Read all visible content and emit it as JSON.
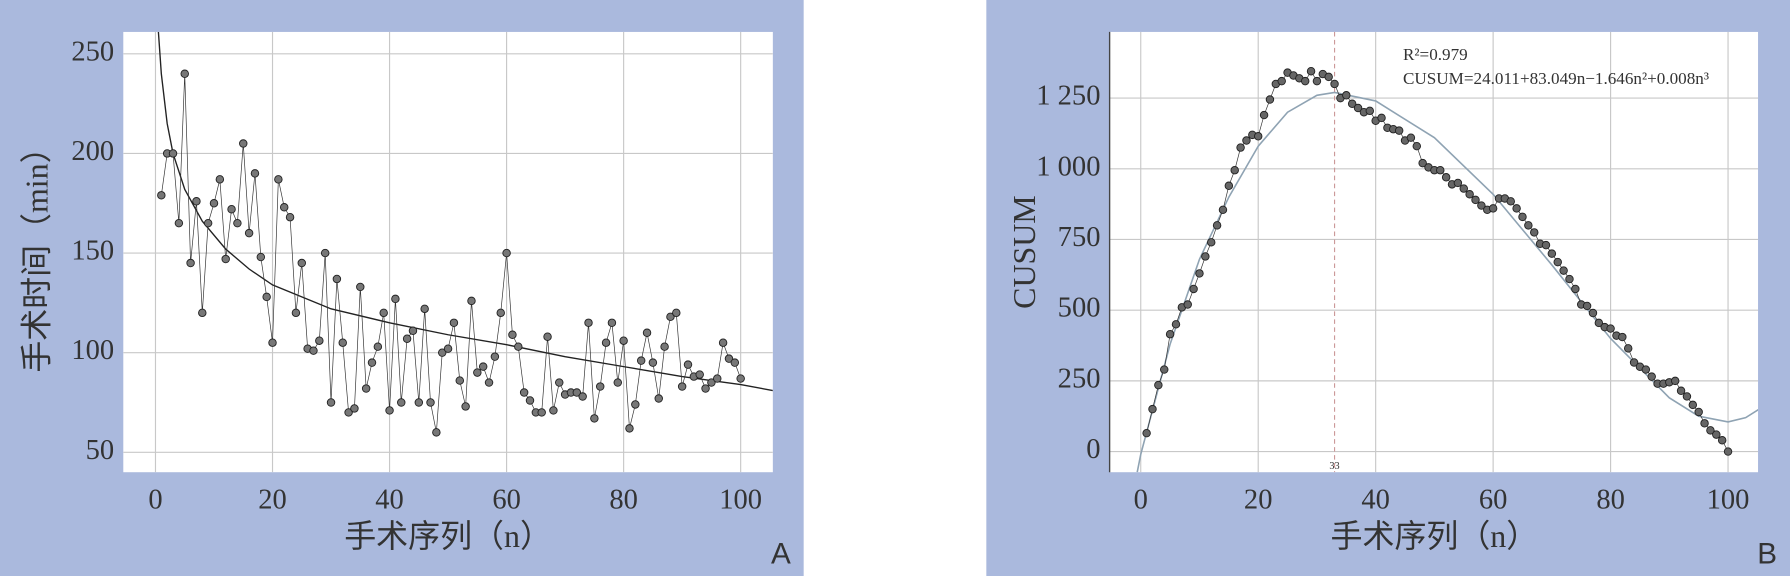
{
  "chart_data": [
    {
      "type": "line",
      "panel": "A",
      "xlabel": "手术序列（n）",
      "ylabel": "手术时间（min）",
      "x": [
        1,
        2,
        3,
        4,
        5,
        6,
        7,
        8,
        9,
        10,
        11,
        12,
        13,
        14,
        15,
        16,
        17,
        18,
        19,
        20,
        21,
        22,
        23,
        24,
        25,
        26,
        27,
        28,
        29,
        30,
        31,
        32,
        33,
        34,
        35,
        36,
        37,
        38,
        39,
        40,
        41,
        42,
        43,
        44,
        45,
        46,
        47,
        48,
        49,
        50,
        51,
        52,
        53,
        54,
        55,
        56,
        57,
        58,
        59,
        60,
        61,
        62,
        63,
        64,
        65,
        66,
        67,
        68,
        69,
        70,
        71,
        72,
        73,
        74,
        75,
        76,
        77,
        78,
        79,
        80,
        81,
        82,
        83,
        84,
        85,
        86,
        87,
        88,
        89,
        90,
        91,
        92,
        93,
        94,
        95,
        96,
        97,
        98,
        99,
        100
      ],
      "series": [
        {
          "color": "#777777",
          "values": [
            179,
            200,
            200,
            165,
            240,
            145,
            176,
            120,
            165,
            175,
            187,
            147,
            172,
            165,
            205,
            160,
            190,
            148,
            128,
            105,
            187,
            173,
            168,
            120,
            145,
            102,
            101,
            106,
            150,
            75,
            137,
            105,
            70,
            72,
            133,
            82,
            95,
            103,
            120,
            71,
            127,
            75,
            107,
            111,
            75,
            122,
            75,
            60,
            100,
            102,
            115,
            86,
            73,
            126,
            90,
            93,
            85,
            98,
            120,
            150,
            109,
            103,
            80,
            76,
            70,
            70,
            108,
            71,
            85,
            79,
            80,
            80,
            78,
            115,
            67,
            83,
            105,
            115,
            85,
            106,
            62,
            74,
            96,
            110,
            95,
            77,
            103,
            118,
            120,
            83,
            94,
            88,
            89,
            82,
            85,
            87,
            105,
            97,
            95,
            87
          ]
        }
      ],
      "curve": {
        "color": "#222222",
        "x": [
          0.5,
          1,
          2,
          3,
          5,
          8,
          12,
          16,
          20,
          30,
          40,
          50,
          60,
          70,
          80,
          90,
          100,
          105.5
        ],
        "values": [
          261,
          240,
          215,
          200,
          182,
          166,
          152,
          142,
          134,
          122,
          115,
          109,
          104,
          98,
          93,
          88,
          84,
          81
        ]
      },
      "xlim": [
        -5.5,
        105.5
      ],
      "ylim": [
        40,
        261
      ],
      "xticks": [
        0,
        20,
        40,
        60,
        80,
        100
      ],
      "yticks": [
        50,
        100,
        150,
        200,
        250
      ],
      "grid": true
    },
    {
      "type": "line",
      "panel": "B",
      "xlabel": "手术序列（n）",
      "ylabel": "CUSUM",
      "annotations": [
        "R²=0.979",
        "CUSUM=24.011+83.049n−1.646n²+0.008n³"
      ],
      "vline": 33,
      "x": [
        1,
        2,
        3,
        4,
        5,
        6,
        7,
        8,
        9,
        10,
        11,
        12,
        13,
        14,
        15,
        16,
        17,
        18,
        19,
        20,
        21,
        22,
        23,
        24,
        25,
        26,
        27,
        28,
        29,
        30,
        31,
        32,
        33,
        34,
        35,
        36,
        37,
        38,
        39,
        40,
        41,
        42,
        43,
        44,
        45,
        46,
        47,
        48,
        49,
        50,
        51,
        52,
        53,
        54,
        55,
        56,
        57,
        58,
        59,
        60,
        61,
        62,
        63,
        64,
        65,
        66,
        67,
        68,
        69,
        70,
        71,
        72,
        73,
        74,
        75,
        76,
        77,
        78,
        79,
        80,
        81,
        82,
        83,
        84,
        85,
        86,
        87,
        88,
        89,
        90,
        91,
        92,
        93,
        94,
        95,
        96,
        97,
        98,
        99,
        100
      ],
      "series": [
        {
          "color": "#666666",
          "values": [
            65,
            150,
            235,
            290,
            415,
            450,
            510,
            520,
            575,
            630,
            690,
            740,
            800,
            855,
            940,
            995,
            1075,
            1100,
            1120,
            1115,
            1190,
            1245,
            1300,
            1310,
            1340,
            1330,
            1320,
            1310,
            1345,
            1310,
            1335,
            1325,
            1300,
            1250,
            1260,
            1230,
            1215,
            1200,
            1205,
            1170,
            1180,
            1145,
            1140,
            1135,
            1100,
            1110,
            1080,
            1020,
            1005,
            995,
            995,
            970,
            945,
            950,
            930,
            910,
            890,
            870,
            855,
            860,
            895,
            895,
            885,
            860,
            830,
            800,
            775,
            735,
            730,
            700,
            670,
            640,
            610,
            575,
            520,
            515,
            490,
            455,
            440,
            435,
            410,
            405,
            365,
            315,
            300,
            290,
            265,
            240,
            240,
            245,
            250,
            215,
            195,
            165,
            140,
            100,
            75,
            60,
            40,
            0
          ]
        }
      ],
      "curve": {
        "color": "#8fa3b3",
        "x": [
          -0.6,
          0,
          5,
          10,
          15,
          20,
          25,
          30,
          33,
          40,
          50,
          60,
          70,
          80,
          90,
          95,
          100,
          103,
          105.3
        ],
        "values": [
          -73,
          -10,
          380,
          680,
          900,
          1080,
          1200,
          1260,
          1270,
          1240,
          1110,
          910,
          660,
          400,
          190,
          125,
          105,
          120,
          150
        ]
      },
      "xlim": [
        -5.3,
        105.3
      ],
      "ylim": [
        -73,
        1484
      ],
      "xticks": [
        0,
        20,
        40,
        60,
        80,
        100
      ],
      "yticks": [
        0,
        250,
        500,
        750,
        {
          "value": 1000,
          "label": "1 000"
        },
        {
          "value": 1250,
          "label": "1 250"
        }
      ],
      "grid": true
    }
  ]
}
